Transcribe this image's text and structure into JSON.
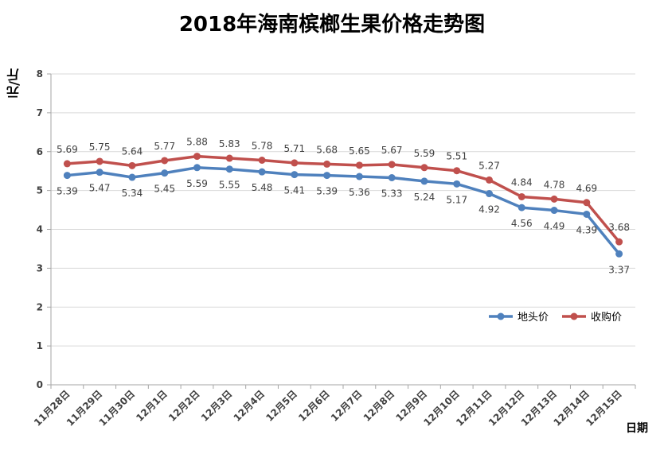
{
  "chart_data": {
    "type": "line",
    "title": "2018年海南槟榔生果价格走势图",
    "xlabel": "日期",
    "ylabel": "元/斤",
    "ylim": [
      0,
      8
    ],
    "yticks": [
      "0",
      "1",
      "2",
      "3",
      "4",
      "5",
      "6",
      "7",
      "8"
    ],
    "categories": [
      "11月28日",
      "11月29日",
      "11月30日",
      "12月1日",
      "12月2日",
      "12月3日",
      "12月4日",
      "12月5日",
      "12月6日",
      "12月7日",
      "12月8日",
      "12月9日",
      "12月10日",
      "12月11日",
      "12月12日",
      "12月13日",
      "12月14日",
      "12月15日"
    ],
    "series": [
      {
        "name": "地头价",
        "color": "#4F81BD",
        "values": [
          5.39,
          5.47,
          5.34,
          5.45,
          5.59,
          5.55,
          5.48,
          5.41,
          5.39,
          5.36,
          5.33,
          5.24,
          5.17,
          4.92,
          4.56,
          4.49,
          4.39,
          3.37
        ]
      },
      {
        "name": "收购价",
        "color": "#C0504D",
        "values": [
          5.69,
          5.75,
          5.64,
          5.77,
          5.88,
          5.83,
          5.78,
          5.71,
          5.68,
          5.65,
          5.67,
          5.59,
          5.51,
          5.27,
          4.84,
          4.78,
          4.69,
          3.68
        ]
      }
    ],
    "grid": true,
    "legend_position": "right-middle"
  }
}
